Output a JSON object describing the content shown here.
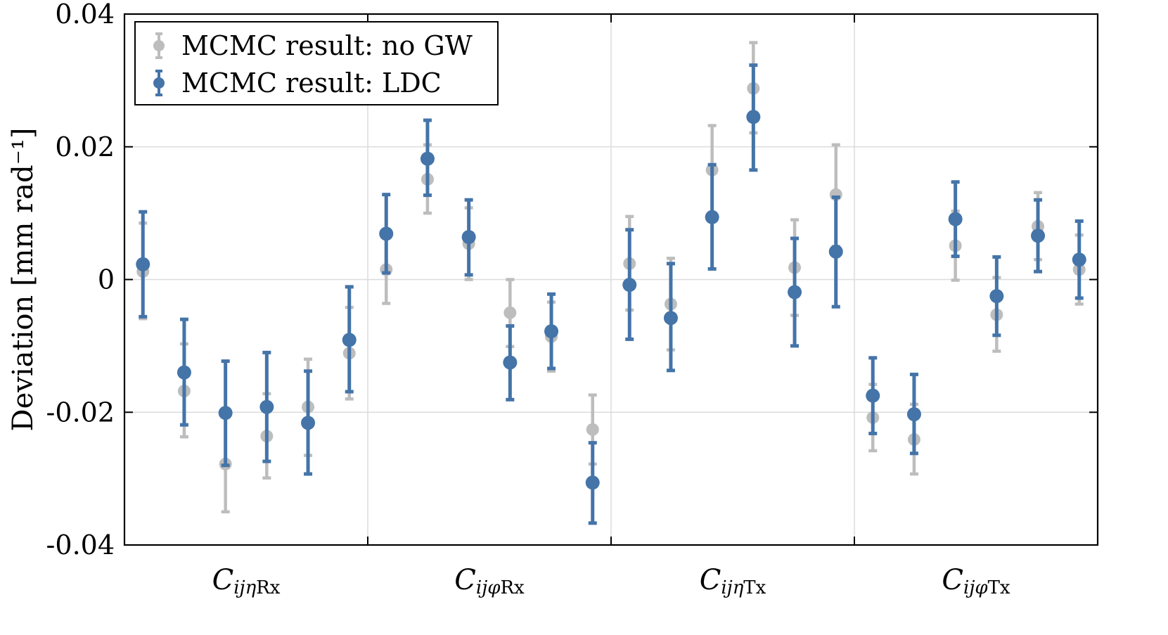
{
  "chart_data": {
    "type": "scatter",
    "ylabel": "Deviation [mm rad⁻¹]",
    "ylim": [
      -0.04,
      0.04
    ],
    "yticks": [
      -0.04,
      -0.02,
      0,
      0.02,
      0.04
    ],
    "ytick_labels": [
      "-0.04",
      "-0.02",
      "0",
      "0.02",
      "0.04"
    ],
    "grid": true,
    "legend_position": "top-left",
    "groups": [
      {
        "main": "C",
        "sub": "ijη",
        "subup": "Rx"
      },
      {
        "main": "C",
        "sub": "ijφ",
        "subup": "Rx"
      },
      {
        "main": "C",
        "sub": "ijη",
        "subup": "Tx"
      },
      {
        "main": "C",
        "sub": "ijφ",
        "subup": "Tx"
      }
    ],
    "x": [
      1,
      2,
      3,
      4,
      5,
      6,
      7,
      8,
      9,
      10,
      11,
      12,
      13,
      14,
      15,
      16,
      17,
      18,
      19,
      20,
      21,
      22,
      23,
      24
    ],
    "series": [
      {
        "name": "MCMC result: no GW",
        "color": "#bdbdbd",
        "values": [
          0.0012,
          -0.0168,
          -0.0278,
          -0.0236,
          -0.0192,
          -0.0111,
          0.0015,
          0.0151,
          0.0054,
          -0.005,
          -0.0086,
          -0.0226,
          0.0024,
          -0.0037,
          0.0165,
          0.0288,
          0.0018,
          0.0128,
          -0.0208,
          -0.0241,
          0.0051,
          -0.0053,
          0.008,
          0.0015
        ],
        "err_low": [
          -0.0059,
          -0.0237,
          -0.035,
          -0.0299,
          -0.0265,
          -0.018,
          -0.0036,
          0.01,
          0.0,
          -0.0101,
          -0.0138,
          -0.0278,
          -0.0046,
          -0.0106,
          0.01,
          0.0221,
          -0.0054,
          0.005,
          -0.0258,
          -0.0293,
          -0.0001,
          -0.0108,
          0.003,
          -0.0037
        ],
        "err_high": [
          0.0085,
          -0.0097,
          -0.0205,
          -0.0172,
          -0.012,
          -0.0042,
          0.0066,
          0.0203,
          0.0108,
          0.0,
          -0.0034,
          -0.0174,
          0.0095,
          0.0032,
          0.0232,
          0.0357,
          0.009,
          0.0203,
          -0.0158,
          -0.0188,
          0.0103,
          0.0003,
          0.0131,
          0.0067
        ]
      },
      {
        "name": "MCMC result: LDC",
        "color": "#4474a8",
        "values": [
          0.0023,
          -0.014,
          -0.0201,
          -0.0192,
          -0.0216,
          -0.0091,
          0.0069,
          0.0182,
          0.0064,
          -0.0125,
          -0.0078,
          -0.0306,
          -0.0008,
          -0.0058,
          0.0094,
          0.0245,
          -0.0019,
          0.0042,
          -0.0175,
          -0.0203,
          0.0091,
          -0.0025,
          0.0066,
          0.003
        ],
        "err_low": [
          -0.0056,
          -0.0219,
          -0.028,
          -0.0274,
          -0.0293,
          -0.0169,
          0.001,
          0.0127,
          0.0007,
          -0.0181,
          -0.0134,
          -0.0367,
          -0.009,
          -0.0137,
          0.0016,
          0.0165,
          -0.01,
          -0.0041,
          -0.0232,
          -0.0262,
          0.0035,
          -0.0084,
          0.0012,
          -0.0028
        ],
        "err_high": [
          0.0102,
          -0.006,
          -0.0123,
          -0.011,
          -0.0138,
          -0.0011,
          0.0128,
          0.024,
          0.012,
          -0.007,
          -0.0022,
          -0.0246,
          0.0075,
          0.0024,
          0.0173,
          0.0323,
          0.0062,
          0.0124,
          -0.0118,
          -0.0143,
          0.0147,
          0.0034,
          0.012,
          0.0088
        ]
      }
    ]
  }
}
